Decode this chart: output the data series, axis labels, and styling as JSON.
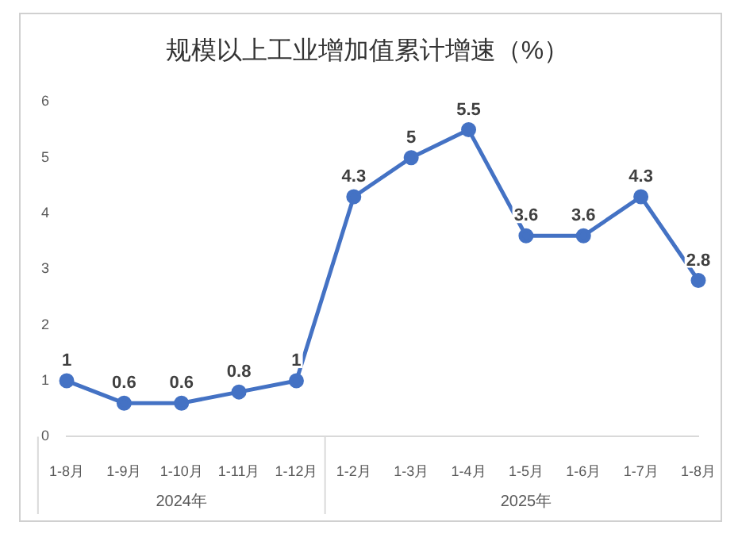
{
  "chart_data": {
    "type": "line",
    "title": "规模以上工业增加值累计增速（%）",
    "categories": [
      "1-8月",
      "1-9月",
      "1-10月",
      "1-11月",
      "1-12月",
      "1-2月",
      "1-3月",
      "1-4月",
      "1-5月",
      "1-6月",
      "1-7月",
      "1-8月"
    ],
    "series": [
      {
        "color": "#4472c4",
        "values": [
          1,
          0.6,
          0.6,
          0.8,
          1,
          4.3,
          5,
          5.5,
          3.6,
          3.6,
          4.3,
          2.8
        ]
      }
    ],
    "ylim": [
      0,
      6
    ],
    "yticks": [
      0,
      1,
      2,
      3,
      4,
      5,
      6
    ],
    "grid": false,
    "legend": false,
    "marker": "circle",
    "line_style": "solid",
    "data_labels": true,
    "annotations": [
      "2024年",
      "2025年"
    ]
  }
}
